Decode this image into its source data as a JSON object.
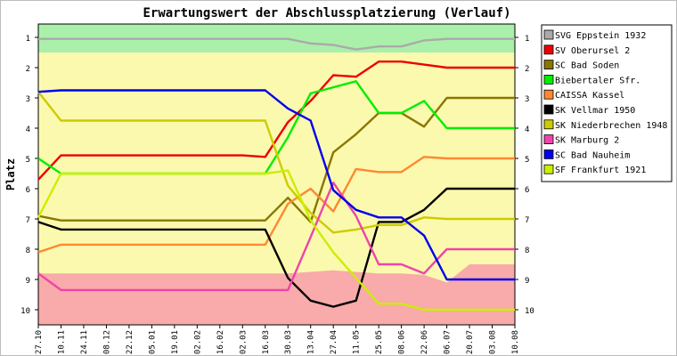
{
  "chart_data": {
    "type": "line",
    "title": "Erwartungswert der Abschlussplatzierung (Verlauf)",
    "ylabel": "Platz",
    "xlabel": "",
    "ylim": [
      1,
      10
    ],
    "y_reversed": true,
    "y_ticks": [
      "1",
      "2",
      "3",
      "4",
      "5",
      "6",
      "7",
      "8",
      "9",
      "10"
    ],
    "x_labels": [
      "27.10",
      "10.11",
      "24.11",
      "08.12",
      "22.12",
      "05.01",
      "19.01",
      "02.02",
      "16.02",
      "02.03",
      "16.03",
      "30.03",
      "13.04",
      "27.04",
      "11.05",
      "25.05",
      "08.06",
      "22.06",
      "06.07",
      "20.07",
      "03.08",
      "10.08"
    ],
    "bands": [
      {
        "name": "promotion",
        "color": "#aaf0aa",
        "upper": [
          1.5,
          1.5,
          1.5,
          1.5,
          1.5,
          1.5,
          1.5,
          1.5,
          1.5,
          1.5,
          1.5,
          1.5,
          1.5,
          1.5,
          1.5,
          1.5,
          1.5,
          1.5,
          1.5,
          1.5,
          1.5,
          1.5
        ]
      },
      {
        "name": "safe",
        "color": "#fbf9ae"
      },
      {
        "name": "relegation",
        "color": "#f9aaaa",
        "lower": [
          8.8,
          8.8,
          8.8,
          8.8,
          8.8,
          8.8,
          8.8,
          8.8,
          8.8,
          8.8,
          8.8,
          8.8,
          8.75,
          8.7,
          8.75,
          8.8,
          8.8,
          8.85,
          9.1,
          8.5,
          8.5,
          8.5
        ]
      }
    ],
    "series": [
      {
        "name": "SVG Eppstein 1932",
        "color": "#aaaaaa",
        "values": [
          1.05,
          1.05,
          1.05,
          1.05,
          1.05,
          1.05,
          1.05,
          1.05,
          1.05,
          1.05,
          1.05,
          1.05,
          1.2,
          1.25,
          1.4,
          1.3,
          1.3,
          1.1,
          1.05,
          1.05,
          1.05,
          1.05
        ]
      },
      {
        "name": "SV Oberursel 2",
        "color": "#ee0000",
        "values": [
          5.7,
          4.9,
          4.9,
          4.9,
          4.9,
          4.9,
          4.9,
          4.9,
          4.9,
          4.9,
          4.95,
          3.8,
          3.1,
          2.25,
          2.3,
          1.8,
          1.8,
          1.9,
          2.0,
          2.0,
          2.0,
          2.0
        ]
      },
      {
        "name": "SC Bad Soden",
        "color": "#887700",
        "values": [
          6.9,
          7.05,
          7.05,
          7.05,
          7.05,
          7.05,
          7.05,
          7.05,
          7.05,
          7.05,
          7.05,
          6.3,
          7.1,
          4.8,
          4.2,
          3.5,
          3.5,
          3.95,
          3.0,
          3.0,
          3.0,
          3.0
        ]
      },
      {
        "name": "Biebertaler Sfr.",
        "color": "#00ee00",
        "values": [
          5.0,
          5.5,
          5.5,
          5.5,
          5.5,
          5.5,
          5.5,
          5.5,
          5.5,
          5.5,
          5.5,
          4.3,
          2.85,
          2.65,
          2.45,
          3.5,
          3.5,
          3.1,
          4.0,
          4.0,
          4.0,
          4.0
        ]
      },
      {
        "name": "CAISSA Kassel",
        "color": "#ff8833",
        "values": [
          8.1,
          7.85,
          7.85,
          7.85,
          7.85,
          7.85,
          7.85,
          7.85,
          7.85,
          7.85,
          7.85,
          6.5,
          6.0,
          6.75,
          5.35,
          5.45,
          5.45,
          4.95,
          5.0,
          5.0,
          5.0,
          5.0
        ]
      },
      {
        "name": "SK Vellmar 1950",
        "color": "#000000",
        "values": [
          7.1,
          7.35,
          7.35,
          7.35,
          7.35,
          7.35,
          7.35,
          7.35,
          7.35,
          7.35,
          7.35,
          8.95,
          9.7,
          9.9,
          9.7,
          7.1,
          7.1,
          6.7,
          6.0,
          6.0,
          6.0,
          6.0
        ]
      },
      {
        "name": "SK Niederbrechen 1948",
        "color": "#cccc00",
        "values": [
          2.8,
          3.75,
          3.75,
          3.75,
          3.75,
          3.75,
          3.75,
          3.75,
          3.75,
          3.75,
          3.75,
          5.9,
          6.8,
          7.45,
          7.35,
          7.2,
          7.2,
          6.95,
          7.0,
          7.0,
          7.0,
          7.0
        ]
      },
      {
        "name": "SK Marburg 2",
        "color": "#ee44aa",
        "values": [
          8.8,
          9.35,
          9.35,
          9.35,
          9.35,
          9.35,
          9.35,
          9.35,
          9.35,
          9.35,
          9.35,
          9.35,
          7.6,
          5.8,
          6.9,
          8.5,
          8.5,
          8.8,
          8.0,
          8.0,
          8.0,
          8.0
        ]
      },
      {
        "name": "SC Bad Nauheim",
        "color": "#0000ee",
        "values": [
          2.8,
          2.75,
          2.75,
          2.75,
          2.75,
          2.75,
          2.75,
          2.75,
          2.75,
          2.75,
          2.75,
          3.35,
          3.75,
          6.05,
          6.7,
          6.95,
          6.95,
          7.55,
          9.0,
          9.0,
          9.0,
          9.0
        ]
      },
      {
        "name": "SF Frankfurt 1921",
        "color": "#ccee00",
        "values": [
          6.95,
          5.5,
          5.5,
          5.5,
          5.5,
          5.5,
          5.5,
          5.5,
          5.5,
          5.5,
          5.5,
          5.4,
          7.05,
          8.1,
          8.95,
          9.8,
          9.8,
          10.0,
          10.0,
          10.0,
          10.0,
          10.0
        ]
      }
    ],
    "legend": "right",
    "grid": false
  }
}
